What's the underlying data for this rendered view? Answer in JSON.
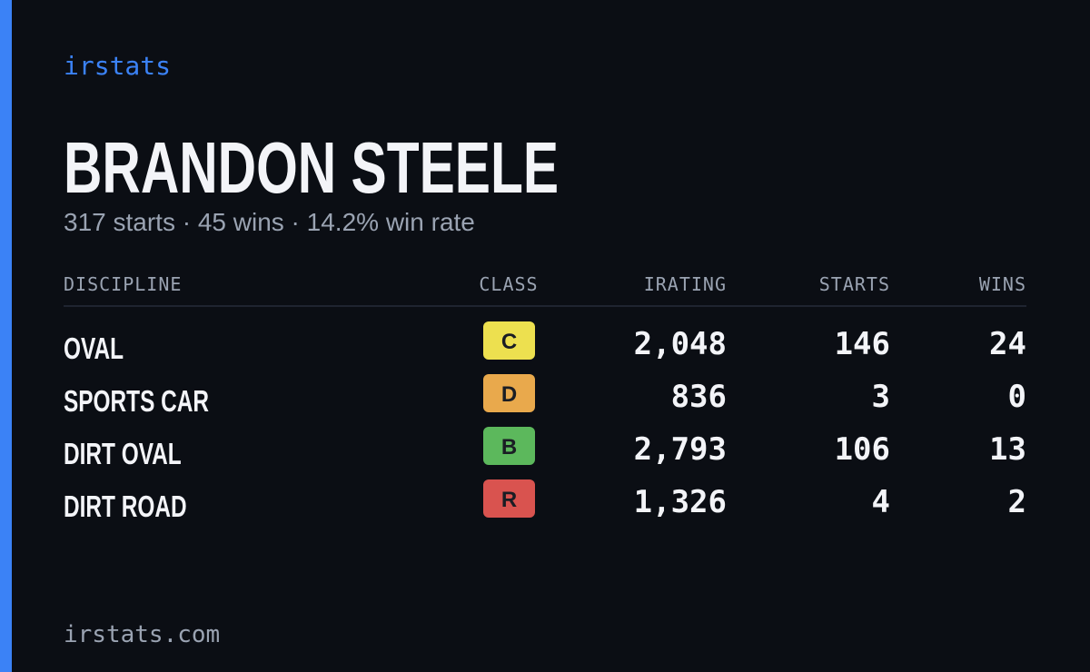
{
  "brand": "irstats",
  "profile": {
    "name": "BRANDON STEELE",
    "summary": "317 starts · 45 wins · 14.2% win rate"
  },
  "table": {
    "headers": [
      "DISCIPLINE",
      "CLASS",
      "IRATING",
      "STARTS",
      "WINS"
    ],
    "rows": [
      [
        "OVAL",
        "C",
        "2,048",
        "146",
        "24"
      ],
      [
        "SPORTS CAR",
        "D",
        "836",
        "3",
        "0"
      ],
      [
        "DIRT OVAL",
        "B",
        "2,793",
        "106",
        "13"
      ],
      [
        "DIRT ROAD",
        "R",
        "1,326",
        "4",
        "2"
      ]
    ],
    "class_colors": [
      "#ede04f",
      "#e9a94c",
      "#5cb85c",
      "#d9534f"
    ]
  },
  "footer": "irstats.com"
}
